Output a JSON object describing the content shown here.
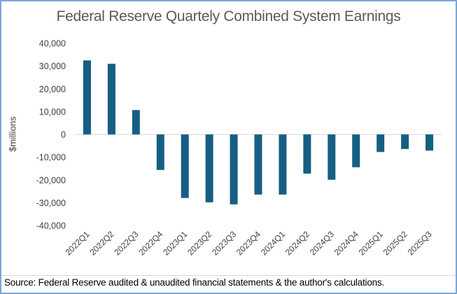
{
  "chart_data": {
    "type": "bar",
    "title": "Federal Reserve Quartely Combined System Earnings",
    "xlabel": "",
    "ylabel": "$millions",
    "ylim": [
      -40000,
      40000
    ],
    "yticks": [
      40000,
      30000,
      20000,
      10000,
      0,
      -10000,
      -20000,
      -30000,
      -40000
    ],
    "ytick_labels": [
      "40,000",
      "30,000",
      "20,000",
      "10,000",
      "0",
      "-10,000",
      "-20,000",
      "-30,000",
      "-40,000"
    ],
    "categories": [
      "2022Q1",
      "2022Q2",
      "2022Q3",
      "2022Q4",
      "2023Q1",
      "2023Q2",
      "2023Q3",
      "2023Q4",
      "2024Q1",
      "2024Q2",
      "2024Q3",
      "2024Q4",
      "2025Q1",
      "2025Q2",
      "2025Q3"
    ],
    "values": [
      32500,
      31000,
      10700,
      -15600,
      -27900,
      -29800,
      -30700,
      -26400,
      -26400,
      -17200,
      -19900,
      -14400,
      -7700,
      -6400,
      -7100
    ],
    "grid": false,
    "legend": "none",
    "bar_color": "#165e83",
    "source": "Source: Federal Reserve audited & unaudited financial statements & the author's calculations."
  }
}
